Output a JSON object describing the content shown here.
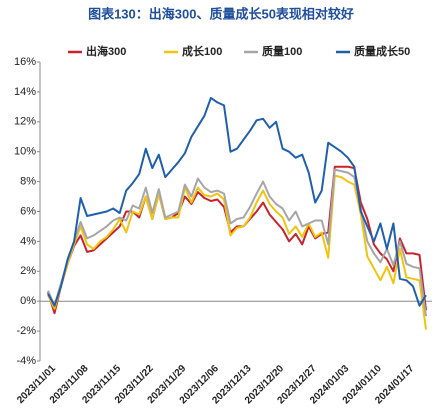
{
  "chart_data": {
    "type": "line",
    "title": "图表130：出海300、质量成长50表现相对较好",
    "categories": [
      "2023/11/01",
      null,
      null,
      null,
      null,
      "2023/11/08",
      null,
      null,
      null,
      null,
      "2023/11/15",
      null,
      null,
      null,
      null,
      "2023/11/22",
      null,
      null,
      null,
      null,
      "2023/11/29",
      null,
      null,
      null,
      null,
      "2023/12/06",
      null,
      null,
      null,
      null,
      "2023/12/13",
      null,
      null,
      null,
      null,
      "2023/12/20",
      null,
      null,
      null,
      null,
      "2023/12/27",
      null,
      null,
      null,
      null,
      "2024/01/03",
      null,
      null,
      null,
      null,
      "2024/01/10",
      null,
      null,
      null,
      null,
      "2024/01/17",
      null,
      null,
      null
    ],
    "series": [
      {
        "name": "出海300",
        "color": "#c8232c",
        "values": [
          0.6,
          -0.8,
          1.0,
          2.5,
          3.7,
          4.4,
          3.3,
          3.4,
          3.8,
          4.2,
          4.6,
          5.0,
          6.0,
          6.0,
          5.6,
          7.0,
          5.5,
          7.2,
          5.5,
          5.6,
          5.9,
          7.0,
          6.5,
          7.3,
          6.9,
          6.7,
          6.8,
          6.3,
          4.6,
          5.0,
          5.0,
          5.5,
          6.0,
          6.6,
          5.8,
          5.3,
          4.8,
          4.0,
          4.5,
          3.8,
          5.0,
          4.2,
          4.5,
          4.6,
          9.0,
          9.0,
          9.0,
          8.9,
          6.6,
          5.5,
          3.8,
          3.2,
          2.8,
          2.0,
          4.2,
          3.2,
          3.2,
          3.1,
          -0.6
        ]
      },
      {
        "name": "成长100",
        "color": "#f2c412",
        "values": [
          0.4,
          -0.5,
          1.0,
          2.5,
          3.8,
          5.0,
          3.8,
          3.5,
          4.0,
          4.3,
          4.8,
          5.5,
          4.6,
          6.0,
          5.8,
          7.0,
          5.5,
          7.2,
          5.5,
          5.6,
          5.6,
          7.6,
          6.6,
          7.6,
          7.1,
          7.0,
          7.2,
          6.8,
          4.4,
          4.9,
          5.0,
          5.6,
          6.6,
          7.4,
          6.5,
          6.0,
          5.6,
          4.5,
          5.0,
          4.3,
          5.2,
          4.3,
          4.6,
          2.9,
          8.4,
          8.3,
          8.0,
          7.8,
          5.8,
          3.0,
          2.2,
          1.4,
          2.3,
          1.2,
          3.5,
          1.6,
          1.5,
          1.4,
          -1.9
        ]
      },
      {
        "name": "质量100",
        "color": "#a6a6a6",
        "values": [
          0.7,
          -0.3,
          1.2,
          2.7,
          4.0,
          5.3,
          4.2,
          4.4,
          4.7,
          5.0,
          5.4,
          5.6,
          5.4,
          6.4,
          6.2,
          7.6,
          5.9,
          7.5,
          5.6,
          5.8,
          6.0,
          7.8,
          7.0,
          8.2,
          7.6,
          7.3,
          7.4,
          7.2,
          5.2,
          5.5,
          5.6,
          6.3,
          7.2,
          8.0,
          7.0,
          6.5,
          6.2,
          5.4,
          6.0,
          5.0,
          5.2,
          5.4,
          5.4,
          3.8,
          8.8,
          8.7,
          8.6,
          8.3,
          6.2,
          4.0,
          3.2,
          2.6,
          3.5,
          2.4,
          4.0,
          2.5,
          2.3,
          2.2,
          -1.0
        ]
      },
      {
        "name": "质量成长50",
        "color": "#1f5fae",
        "values": [
          0.5,
          -0.3,
          1.0,
          2.8,
          4.0,
          6.9,
          5.7,
          5.8,
          5.9,
          6.0,
          6.2,
          5.9,
          7.4,
          7.9,
          8.5,
          10.2,
          8.9,
          9.8,
          8.3,
          8.8,
          9.3,
          9.9,
          11.0,
          11.7,
          12.4,
          13.6,
          13.3,
          13.1,
          10.0,
          10.2,
          10.8,
          11.4,
          12.1,
          12.2,
          11.6,
          12.0,
          10.2,
          10.0,
          9.6,
          9.8,
          8.6,
          6.6,
          7.4,
          10.6,
          10.3,
          10.0,
          9.6,
          9.0,
          6.0,
          5.0,
          4.0,
          5.2,
          3.5,
          5.2,
          1.5,
          1.4,
          1.0,
          -0.3,
          0.4
        ]
      }
    ],
    "ylim": [
      -4,
      16
    ],
    "yticks": [
      {
        "value": -4,
        "label": "-4%"
      },
      {
        "value": -2,
        "label": "-2%"
      },
      {
        "value": 0,
        "label": "0%"
      },
      {
        "value": 2,
        "label": "2%"
      },
      {
        "value": 4,
        "label": "4%"
      },
      {
        "value": 6,
        "label": "6%"
      },
      {
        "value": 8,
        "label": "8%"
      },
      {
        "value": 10,
        "label": "10%"
      },
      {
        "value": 12,
        "label": "12%"
      },
      {
        "value": 14,
        "label": "14%"
      },
      {
        "value": 16,
        "label": "16%"
      }
    ],
    "grid": false
  }
}
